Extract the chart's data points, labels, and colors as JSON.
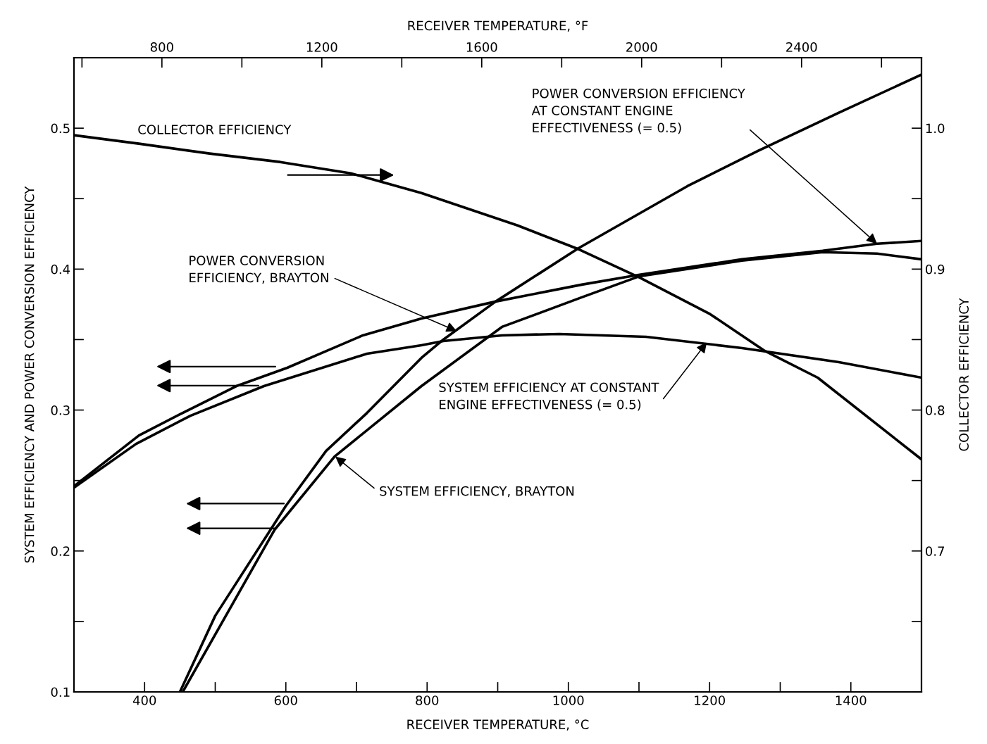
{
  "chart_data": {
    "type": "line",
    "xlabel": "RECEIVER TEMPERATURE, °C",
    "x2label": "RECEIVER TEMPERATURE, °F",
    "ylabel": "SYSTEM EFFICIENCY AND POWER CONVERSION EFFICIENCY",
    "y2label": "COLLECTOR EFFICIENCY",
    "xlim": [
      300,
      1500
    ],
    "xticks": [
      {
        "value": 300,
        "label": null
      },
      400,
      {
        "value": 500,
        "label": null
      },
      600,
      {
        "value": 700,
        "label": null
      },
      800,
      {
        "value": 900,
        "label": null
      },
      1000,
      {
        "value": 1100,
        "label": null
      },
      1200,
      {
        "value": 1300,
        "label": null
      },
      1400
    ],
    "x2lim": [
      580,
      2700
    ],
    "x2ticks": [
      {
        "value": 600,
        "label": null
      },
      800,
      {
        "value": 1000,
        "label": null
      },
      1200,
      {
        "value": 1400,
        "label": null
      },
      1600,
      {
        "value": 1800,
        "label": null
      },
      2000,
      {
        "value": 2200,
        "label": null
      },
      2400,
      {
        "value": 2600,
        "label": null
      }
    ],
    "ylim": [
      0.1,
      0.55
    ],
    "yticks": [
      0.1,
      {
        "value": 0.15,
        "label": null
      },
      0.2,
      {
        "value": 0.25,
        "label": null
      },
      0.3,
      {
        "value": 0.35,
        "label": null
      },
      0.4,
      {
        "value": 0.45,
        "label": null
      },
      0.5
    ],
    "y2lim": [
      0.6,
      1.05
    ],
    "y2ticks": [
      {
        "value": 0.65,
        "label": null
      },
      0.7,
      {
        "value": 0.75,
        "label": null
      },
      0.8,
      {
        "value": 0.85,
        "label": null
      },
      0.9,
      {
        "value": 0.95,
        "label": null
      },
      {
        "value": 1.0,
        "label": "1.0"
      }
    ],
    "grid": false,
    "legend": false,
    "marker": "none",
    "line_style": "solid",
    "series": [
      {
        "color": "#000000",
        "axis": "y2",
        "x": [
          300,
          392,
          492,
          592,
          692,
          792,
          928,
          1015,
          1101,
          1201,
          1278,
          1353,
          1500
        ],
        "values": [
          0.995,
          0.989,
          0.982,
          0.976,
          0.968,
          0.954,
          0.931,
          0.914,
          0.894,
          0.868,
          0.842,
          0.823,
          0.765
        ]
      },
      {
        "color": "#000000",
        "x": [
          300,
          392,
          454,
          530,
          602,
          709,
          792,
          897,
          1019,
          1101,
          1246,
          1360,
          1437,
          1500
        ],
        "values": [
          0.246,
          0.282,
          0.298,
          0.317,
          0.33,
          0.353,
          0.365,
          0.377,
          0.389,
          0.396,
          0.407,
          0.413,
          0.418,
          0.42
        ]
      },
      {
        "color": "#000000",
        "x": [
          300,
          388,
          465,
          569,
          715,
          792,
          823,
          906,
          987,
          1110,
          1246,
          1383,
          1500
        ],
        "values": [
          0.245,
          0.276,
          0.296,
          0.317,
          0.34,
          0.346,
          0.349,
          0.353,
          0.354,
          0.352,
          0.344,
          0.334,
          0.323
        ]
      },
      {
        "color": "#000000",
        "x": [
          450,
          500,
          600,
          657,
          715,
          792,
          823,
          897,
          1015,
          1169,
          1269,
          1383,
          1500
        ],
        "values": [
          0.1,
          0.154,
          0.232,
          0.271,
          0.298,
          0.337,
          0.35,
          0.377,
          0.415,
          0.459,
          0.484,
          0.511,
          0.538
        ]
      },
      {
        "color": "#000000",
        "x": [
          454,
          584,
          669,
          792,
          906,
          1019,
          1101,
          1246,
          1360,
          1437,
          1500
        ],
        "values": [
          0.1,
          0.215,
          0.267,
          0.317,
          0.359,
          0.38,
          0.395,
          0.406,
          0.412,
          0.411,
          0.407
        ]
      }
    ],
    "annotations": [
      "COLLECTOR EFFICIENCY",
      {
        "text": "POWER CONVERSION\nEFFICIENCY, BRAYTON",
        "x": 842,
        "y": 0.356
      },
      {
        "text": "POWER CONVERSION EFFICIENCY\nAT CONSTANT ENGINE\nEFFECTIVENESS (= 0.5)",
        "x": 1437,
        "y": 0.418
      },
      {
        "text": "SYSTEM EFFICIENCY AT CONSTANT\nENGINE EFFECTIVENESS (= 0.5)",
        "x": 1196,
        "y": 0.348
      },
      {
        "text": "SYSTEM EFFICIENCY, BRAYTON",
        "x": 670,
        "y": 0.267
      }
    ]
  }
}
